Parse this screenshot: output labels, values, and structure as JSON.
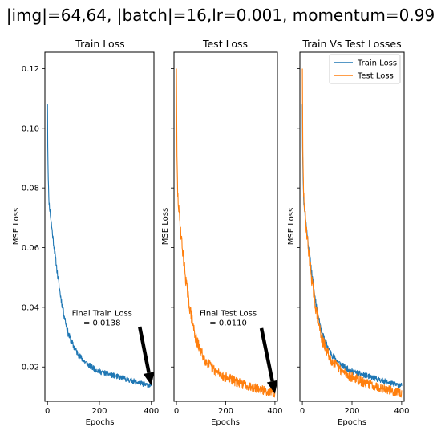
{
  "figure": {
    "title": "|img|=64,64, |batch|=16,lr=0.001, momentum=0.99"
  },
  "colors": {
    "train": "#1f77b4",
    "test": "#ff7f0e",
    "arrow": "#000000"
  },
  "chart_data": [
    {
      "type": "line",
      "title": "Train Loss",
      "xlabel": "Epochs",
      "ylabel": "MSE Loss",
      "xlim": [
        -10,
        410
      ],
      "ylim": [
        0.0085,
        0.1255
      ],
      "xticks": [
        "0",
        "200",
        "400"
      ],
      "yticks": [
        "0.02",
        "0.04",
        "0.06",
        "0.08",
        "0.10",
        "0.12"
      ],
      "grid": false,
      "series": [
        {
          "x": [
            0,
            2,
            5,
            10,
            20,
            30,
            40,
            50,
            60,
            70,
            80,
            90,
            100,
            120,
            140,
            160,
            180,
            200,
            220,
            240,
            260,
            280,
            300,
            320,
            340,
            360,
            380,
            400
          ],
          "values": [
            0.108,
            0.088,
            0.076,
            0.072,
            0.064,
            0.057,
            0.05,
            0.044,
            0.039,
            0.035,
            0.031,
            0.029,
            0.027,
            0.024,
            0.022,
            0.0205,
            0.0195,
            0.0185,
            0.018,
            0.0175,
            0.017,
            0.0165,
            0.016,
            0.0155,
            0.015,
            0.0145,
            0.014,
            0.0138
          ],
          "noise": 0.0012
        }
      ],
      "annotation": {
        "label_line1": "Final Train Loss",
        "label_line2": "= 0.0138",
        "text_xy": [
          210,
          0.0372
        ],
        "arrow_from": [
          355,
          0.0335
        ],
        "arrow_to": [
          400,
          0.0138
        ]
      }
    },
    {
      "type": "line",
      "title": "Test Loss",
      "xlabel": "Epochs",
      "ylabel": "MSE Loss",
      "xlim": [
        -10,
        410
      ],
      "ylim": [
        0.0085,
        0.1255
      ],
      "xticks": [
        "0",
        "200",
        "400"
      ],
      "yticks": [],
      "grid": false,
      "series": [
        {
          "x": [
            0,
            2,
            5,
            10,
            20,
            30,
            40,
            50,
            60,
            70,
            80,
            90,
            100,
            120,
            140,
            160,
            180,
            200,
            220,
            240,
            260,
            280,
            300,
            320,
            340,
            360,
            380,
            400
          ],
          "values": [
            0.12,
            0.09,
            0.078,
            0.072,
            0.063,
            0.055,
            0.048,
            0.042,
            0.037,
            0.033,
            0.029,
            0.027,
            0.025,
            0.022,
            0.02,
            0.0185,
            0.0175,
            0.0165,
            0.016,
            0.015,
            0.0145,
            0.014,
            0.0135,
            0.013,
            0.0125,
            0.012,
            0.0115,
            0.011
          ],
          "noise": 0.0022
        }
      ],
      "annotation": {
        "label_line1": "Final Test Loss",
        "label_line2": "= 0.0110",
        "text_xy": [
          210,
          0.0372
        ],
        "arrow_from": [
          345,
          0.033
        ],
        "arrow_to": [
          400,
          0.011
        ]
      }
    },
    {
      "type": "line",
      "title": "Train Vs Test Losses",
      "xlabel": "Epochs",
      "ylabel": "MSE Loss",
      "xlim": [
        -10,
        410
      ],
      "ylim": [
        0.0085,
        0.1255
      ],
      "xticks": [
        "0",
        "200",
        "400"
      ],
      "yticks": [],
      "grid": false,
      "legend": "top-right",
      "series": [
        {
          "name": "Train Loss",
          "x": [
            0,
            2,
            5,
            10,
            20,
            30,
            40,
            50,
            60,
            70,
            80,
            90,
            100,
            120,
            140,
            160,
            180,
            200,
            220,
            240,
            260,
            280,
            300,
            320,
            340,
            360,
            380,
            400
          ],
          "values": [
            0.108,
            0.088,
            0.076,
            0.072,
            0.064,
            0.057,
            0.05,
            0.044,
            0.039,
            0.035,
            0.031,
            0.029,
            0.027,
            0.024,
            0.022,
            0.0205,
            0.0195,
            0.0185,
            0.018,
            0.0175,
            0.017,
            0.0165,
            0.016,
            0.0155,
            0.015,
            0.0145,
            0.014,
            0.0138
          ],
          "noise": 0.0012
        },
        {
          "name": "Test Loss",
          "x": [
            0,
            2,
            5,
            10,
            20,
            30,
            40,
            50,
            60,
            70,
            80,
            90,
            100,
            120,
            140,
            160,
            180,
            200,
            220,
            240,
            260,
            280,
            300,
            320,
            340,
            360,
            380,
            400
          ],
          "values": [
            0.12,
            0.09,
            0.078,
            0.072,
            0.063,
            0.055,
            0.048,
            0.042,
            0.037,
            0.033,
            0.029,
            0.027,
            0.025,
            0.022,
            0.02,
            0.0185,
            0.0175,
            0.0165,
            0.016,
            0.015,
            0.0145,
            0.014,
            0.0135,
            0.013,
            0.0125,
            0.012,
            0.0115,
            0.011
          ],
          "noise": 0.0022
        }
      ]
    }
  ]
}
